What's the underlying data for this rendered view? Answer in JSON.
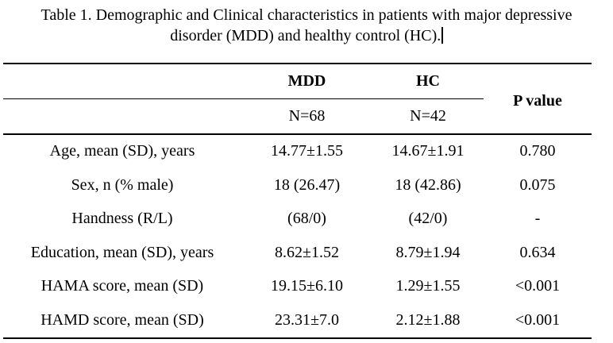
{
  "title": {
    "line1": "Table 1. Demographic and Clinical characteristics in patients with major depressive",
    "line2": "disorder (MDD) and healthy control (HC).",
    "caret_visible": true
  },
  "table": {
    "header": {
      "mdd": "MDD",
      "hc": "HC",
      "n_mdd": "N=68",
      "n_hc": "N=42",
      "p_value": "P value"
    },
    "rows": [
      {
        "label": "Age, mean (SD), years",
        "mdd": "14.77±1.55",
        "hc": "14.67±1.91",
        "p": "0.780"
      },
      {
        "label": "Sex, n (% male)",
        "mdd": "18 (26.47)",
        "hc": "18 (42.86)",
        "p": "0.075"
      },
      {
        "label": "Handness (R/L)",
        "mdd": "(68/0)",
        "hc": "(42/0)",
        "p": "-"
      },
      {
        "label": "Education, mean (SD), years",
        "mdd": "8.62±1.52",
        "hc": "8.79±1.94",
        "p": "0.634"
      },
      {
        "label": "HAMA score, mean (SD)",
        "mdd": "19.15±6.10",
        "hc": "1.29±1.55",
        "p": "<0.001"
      },
      {
        "label": "HAMD score, mean (SD)",
        "mdd": "23.31±7.0",
        "hc": "2.12±1.88",
        "p": "<0.001"
      }
    ]
  },
  "colors": {
    "text": "#000000",
    "background": "#ffffff",
    "rule": "#000000"
  }
}
